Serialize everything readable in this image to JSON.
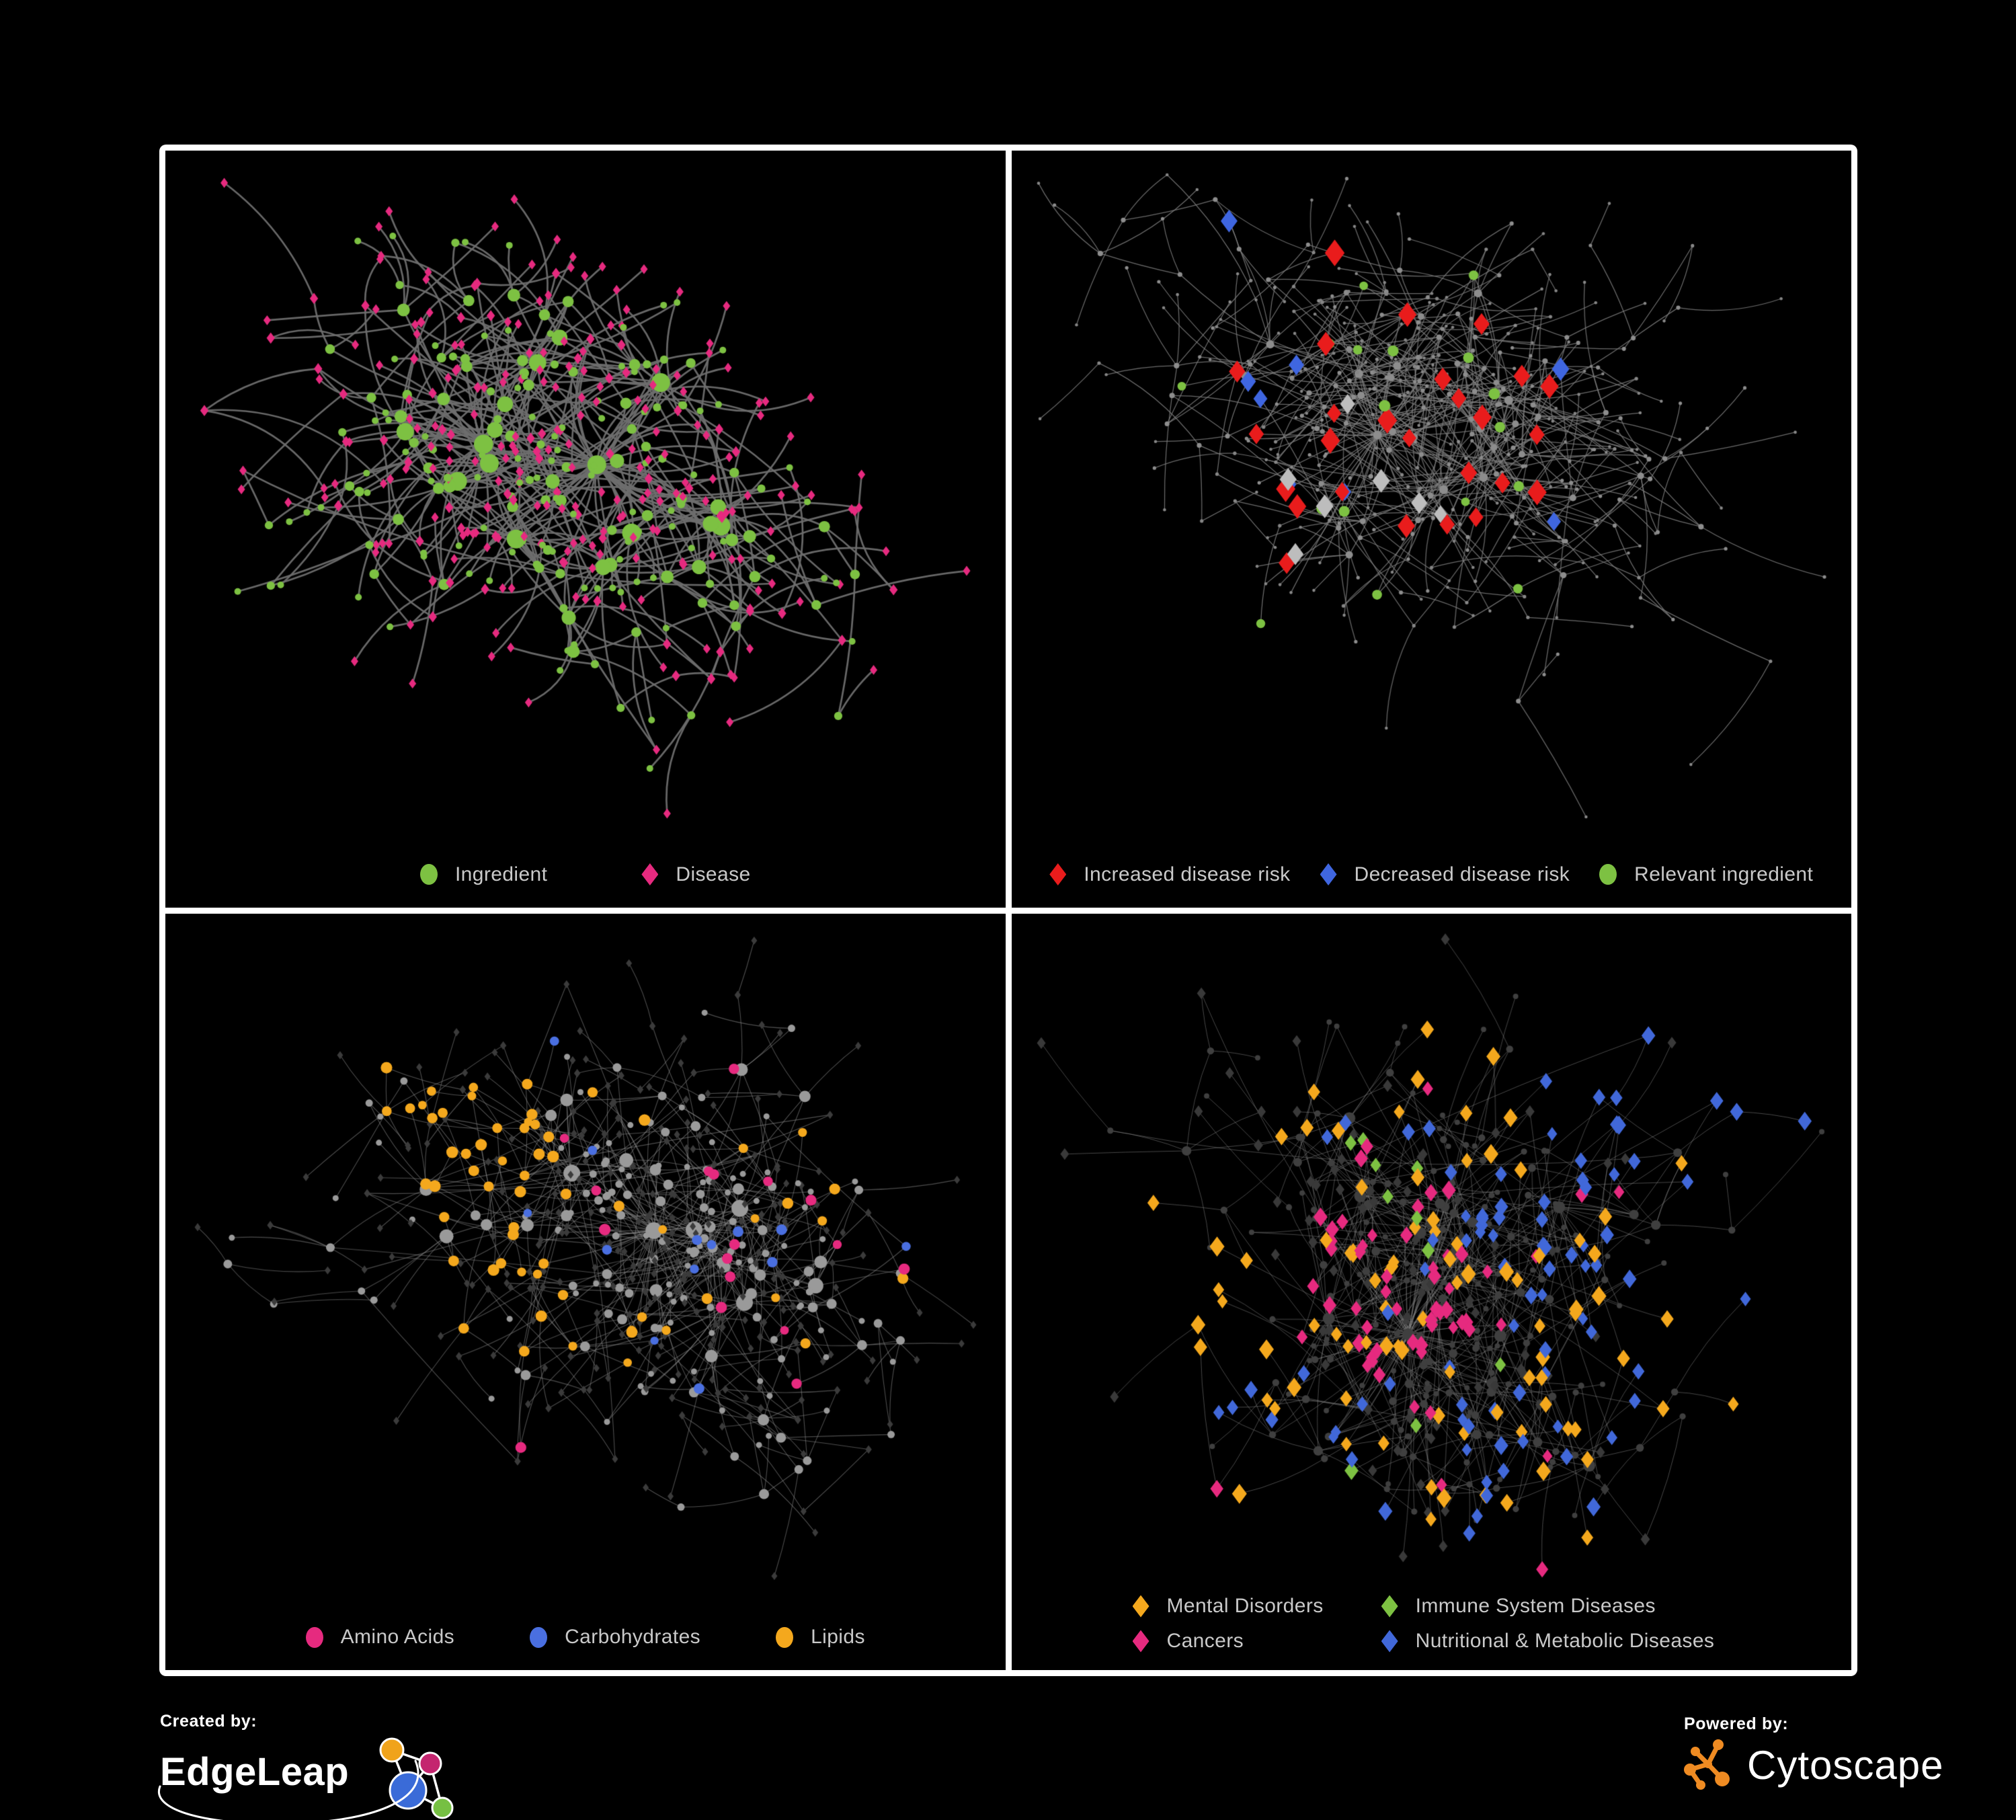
{
  "poster": {
    "background": "#000000",
    "frame_color": "#ffffff"
  },
  "panels": [
    {
      "id": "ingredient-disease",
      "legend": {
        "rows": 1,
        "items": [
          {
            "label": "Ingredient",
            "color": "#7dc142",
            "shape": "circle"
          },
          {
            "label": "Disease",
            "color": "#e62a7f",
            "shape": "diamond"
          }
        ]
      },
      "network": {
        "seed": 11,
        "nodes": 460,
        "bias": 2.2,
        "step": 46,
        "extra_links": 12,
        "ingredient_prob": 0.3,
        "margin": {
          "t": 48,
          "r": 58,
          "b": 140,
          "l": 58
        },
        "edge": {
          "color": "#6e6e6e",
          "width": 2.7,
          "alpha": 0.95,
          "curve": 0.55
        },
        "base": {
          "i": {
            "shape": "circle",
            "color": "#7dc142",
            "rmin": 5,
            "rmax": 14
          },
          "d": {
            "shape": "diamond",
            "color": "#e62a7f",
            "rmin": 5.5,
            "rmax": 11
          }
        },
        "categories": []
      }
    },
    {
      "id": "disease-risk",
      "legend": {
        "rows": 1,
        "items": [
          {
            "label": "Increased disease risk",
            "color": "#e91c1c",
            "shape": "diamond"
          },
          {
            "label": "Decreased disease risk",
            "color": "#3f66e0",
            "shape": "diamond"
          },
          {
            "label": "Relevant ingredient",
            "color": "#7dc142",
            "shape": "circle"
          }
        ]
      },
      "network": {
        "seed": 23,
        "nodes": 520,
        "bias": 1.7,
        "step": 42,
        "extra_links": 16,
        "ingredient_prob": 0.3,
        "margin": {
          "t": 36,
          "r": 40,
          "b": 135,
          "l": 40
        },
        "edge": {
          "color": "#7d7d7d",
          "width": 1.25,
          "alpha": 0.85,
          "curve": 0.25
        },
        "base": {
          "i": {
            "shape": "circle",
            "color": "#8d8d8d",
            "rmin": 2.6,
            "rmax": 6.5
          },
          "d": {
            "shape": "circle",
            "color": "#868686",
            "rmin": 2.3,
            "rmax": 5
          }
        },
        "categories": [
          {
            "name": "increased-risk",
            "shape": "diamond",
            "color": "#e91c1c",
            "size": 12.5,
            "count": 26,
            "centers": [
              [
                0.44,
                0.4,
                0.27
              ],
              [
                0.78,
                0.73,
                0.1
              ]
            ],
            "stray": 0.04
          },
          {
            "name": "decreased-risk",
            "shape": "diamond",
            "color": "#3f66e0",
            "size": 11.5,
            "count": 8,
            "centers": [
              [
                0.3,
                0.38,
                0.13
              ],
              [
                0.88,
                0.25,
                0.06
              ]
            ],
            "stray": 0.05
          },
          {
            "name": "neutral-risk",
            "shape": "diamond",
            "color": "#bdbdbd",
            "size": 11.5,
            "count": 7,
            "centers": [
              [
                0.43,
                0.45,
                0.22
              ]
            ],
            "stray": 0.03
          },
          {
            "name": "relevant-ingredient",
            "shape": "circle",
            "color": "#7dc142",
            "size": 7.5,
            "count": 17,
            "centers": [
              [
                0.42,
                0.4,
                0.3
              ]
            ],
            "stray": 0.06
          }
        ]
      }
    },
    {
      "id": "nutrient-categories",
      "legend": {
        "rows": 1,
        "items": [
          {
            "label": "Amino Acids",
            "color": "#e62a7f",
            "shape": "circle"
          },
          {
            "label": "Carbohydrates",
            "color": "#4a6fe0",
            "shape": "circle"
          },
          {
            "label": "Lipids",
            "color": "#f4a81d",
            "shape": "circle"
          }
        ]
      },
      "network": {
        "seed": 37,
        "nodes": 560,
        "bias": 2.1,
        "step": 40,
        "extra_links": 26,
        "ingredient_prob": 0.34,
        "margin": {
          "t": 40,
          "r": 48,
          "b": 140,
          "l": 48
        },
        "edge": {
          "color": "#8c8c8c",
          "width": 1.1,
          "alpha": 0.55,
          "curve": 0.2
        },
        "base": {
          "i": {
            "shape": "circle",
            "color": "#9a9a9a",
            "rmin": 4.5,
            "rmax": 12.5
          },
          "d": {
            "shape": "diamond",
            "color": "#3b3b3b",
            "rmin": 4.5,
            "rmax": 6.5
          }
        },
        "categories": [
          {
            "name": "lipids",
            "applies": "i",
            "shape": "circle",
            "color": "#f4a81d",
            "size": 7.5,
            "count": 62,
            "centers": [
              [
                0.355,
                0.28,
                0.13
              ],
              [
                0.4,
                0.5,
                0.1
              ],
              [
                0.53,
                0.6,
                0.06
              ]
            ],
            "stray": 0.05
          },
          {
            "name": "amino-acids",
            "applies": "i",
            "shape": "circle",
            "color": "#e62a7f",
            "size": 7.5,
            "count": 17,
            "stray": 1
          },
          {
            "name": "carbohydrates",
            "applies": "i",
            "shape": "circle",
            "color": "#4a6fe0",
            "size": 7,
            "count": 13,
            "centers": [
              [
                0.36,
                0.3,
                0.11
              ]
            ],
            "stray": 0.12
          }
        ]
      }
    },
    {
      "id": "disease-categories",
      "legend": {
        "rows": 2,
        "items": [
          {
            "label": "Mental Disorders",
            "color": "#f4a81d",
            "shape": "diamond"
          },
          {
            "label": "Immune System Diseases",
            "color": "#7dc142",
            "shape": "diamond"
          },
          {
            "label": "Cancers",
            "color": "#e62a7f",
            "shape": "diamond"
          },
          {
            "label": "Nutritional & Metabolic Diseases",
            "color": "#4168d9",
            "shape": "diamond"
          }
        ]
      },
      "network": {
        "seed": 53,
        "nodes": 560,
        "bias": 2.05,
        "step": 40,
        "extra_links": 26,
        "ingredient_prob": 0.3,
        "margin": {
          "t": 38,
          "r": 44,
          "b": 150,
          "l": 44
        },
        "edge": {
          "color": "#8c8c8c",
          "width": 1.0,
          "alpha": 0.5,
          "curve": 0.18
        },
        "base": {
          "i": {
            "shape": "circle",
            "color": "#3f3f3f",
            "rmin": 4,
            "rmax": 9
          },
          "d": {
            "shape": "diamond",
            "color": "#393939",
            "rmin": 6.5,
            "rmax": 9.5
          }
        },
        "categories": [
          {
            "name": "mental-disorders",
            "applies": "d",
            "shape": "diamond",
            "color": "#f4a81d",
            "size": 9.5,
            "count": 88,
            "centers": [
              [
                0.17,
                0.45,
                0.14
              ],
              [
                0.3,
                0.12,
                0.05
              ],
              [
                0.07,
                0.63,
                0.05
              ]
            ],
            "stray": 0.05
          },
          {
            "name": "cancers",
            "applies": "d",
            "shape": "diamond",
            "color": "#e62a7f",
            "size": 9,
            "count": 58,
            "centers": [
              [
                0.46,
                0.52,
                0.15
              ],
              [
                0.52,
                0.24,
                0.05
              ],
              [
                0.63,
                0.84,
                0.05
              ]
            ],
            "stray": 0.06
          },
          {
            "name": "nutritional-metabolic",
            "applies": "d",
            "shape": "diamond",
            "color": "#4168d9",
            "size": 9,
            "count": 85,
            "centers": [
              [
                0.72,
                0.42,
                0.2
              ],
              [
                0.6,
                0.74,
                0.1
              ],
              [
                0.32,
                0.68,
                0.08
              ],
              [
                0.86,
                0.12,
                0.07
              ],
              [
                0.94,
                0.3,
                0.05
              ]
            ],
            "stray": 0.08
          },
          {
            "name": "immune-system",
            "applies": "d",
            "shape": "diamond",
            "color": "#7dc142",
            "size": 9,
            "count": 10,
            "stray": 1
          }
        ]
      }
    }
  ],
  "footer": {
    "created_by": {
      "label": "Created by:",
      "brand": "EdgeLeap"
    },
    "powered_by": {
      "label": "Powered by:",
      "brand": "Cytoscape",
      "accent": "#ef8b22"
    },
    "edgeleap_logo_colors": {
      "orange": "#f0a31b",
      "magenta": "#c4256f",
      "blue": "#3a6bd8",
      "green": "#76c043",
      "line": "#ffffff"
    }
  }
}
